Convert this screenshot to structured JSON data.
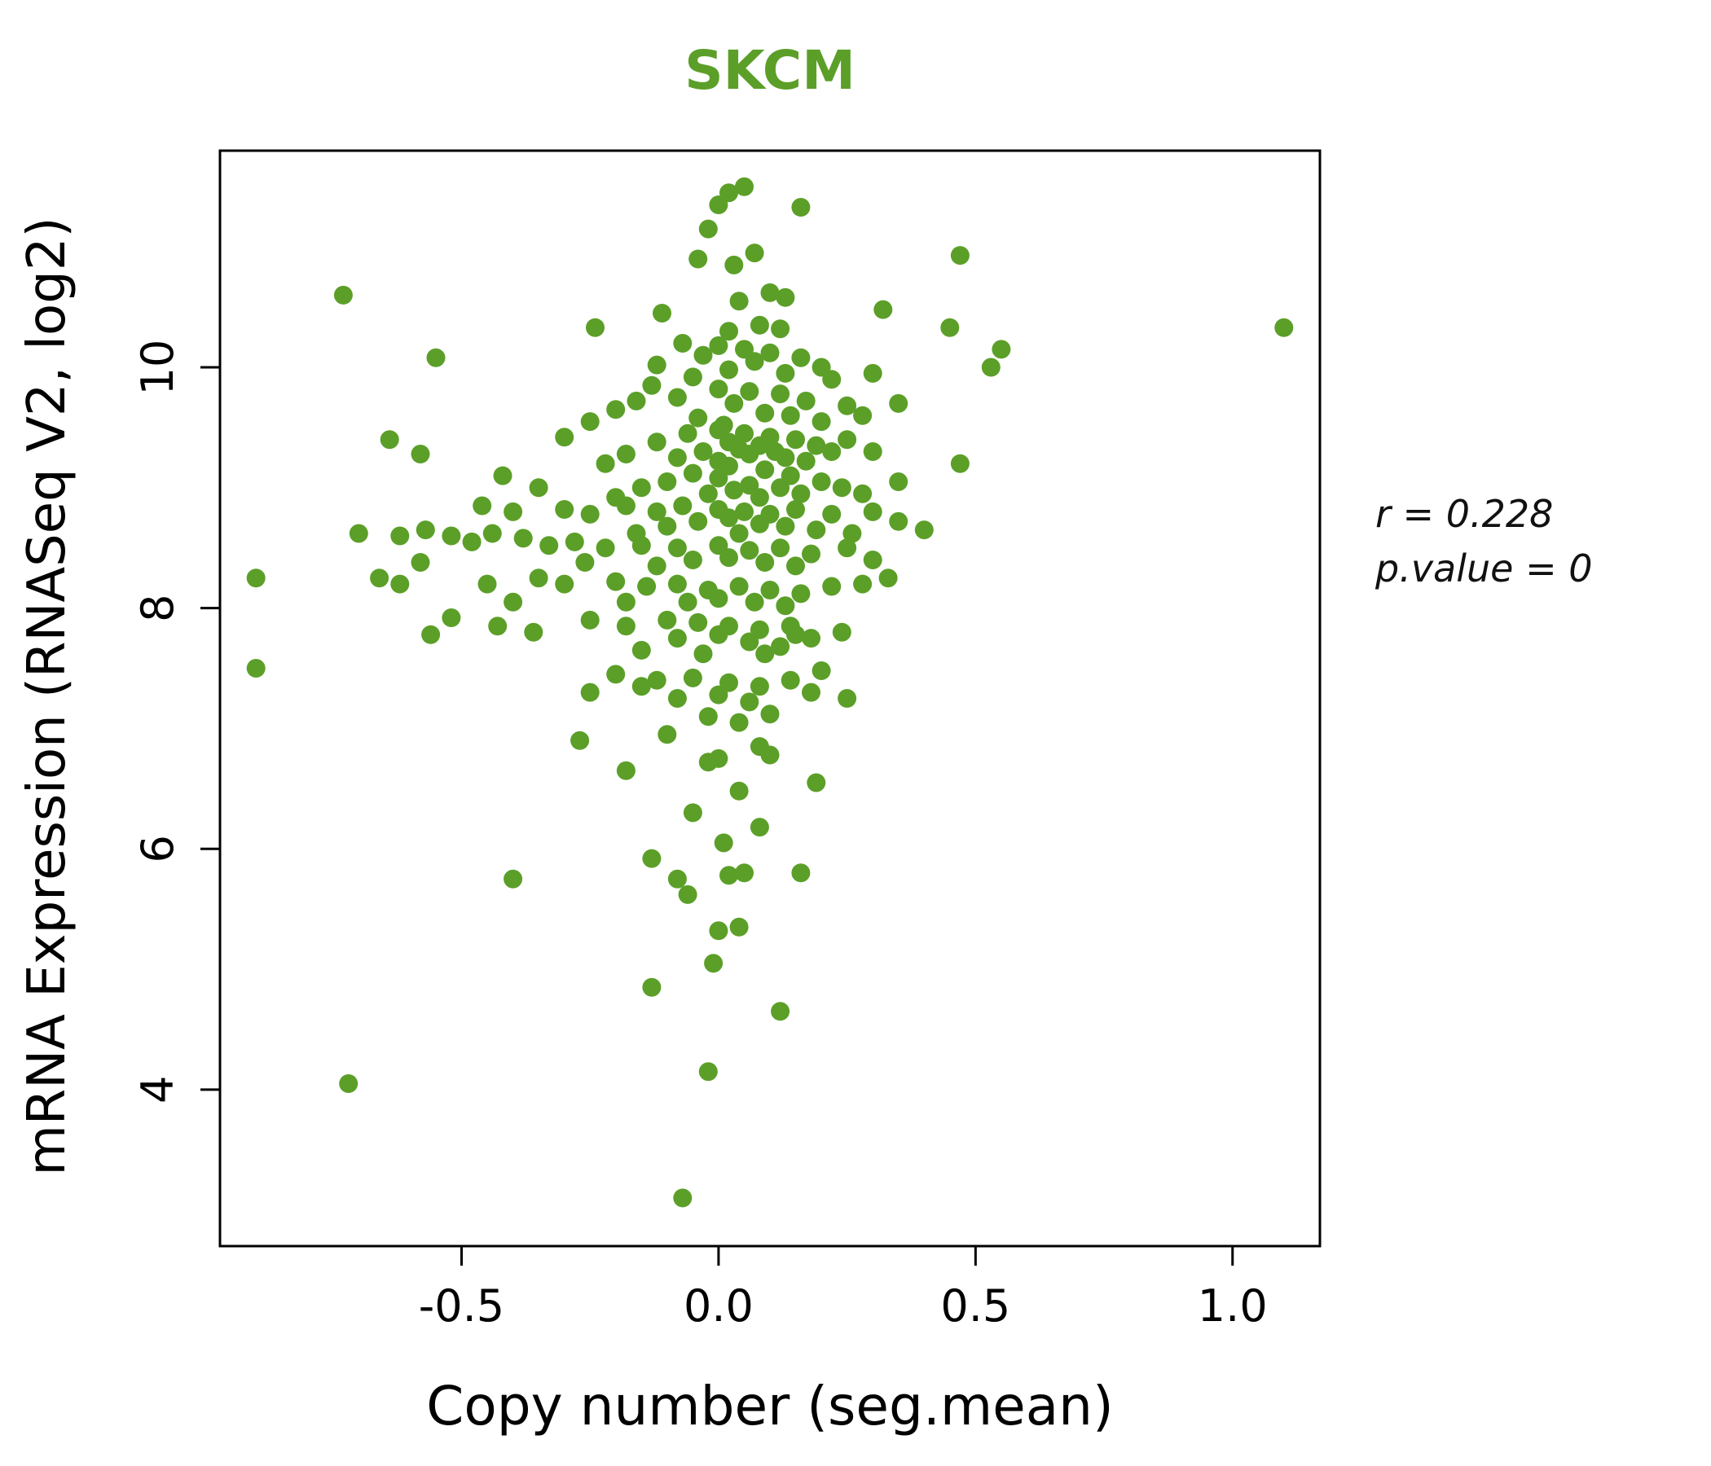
{
  "colors": {
    "green": "#5b9f28",
    "axis": "#000000"
  },
  "chart_data": {
    "type": "scatter",
    "title": "SKCM",
    "xlabel": "Copy number (seg.mean)",
    "ylabel": "mRNA Expression (RNASeq V2, log2)",
    "annotations": [
      "r = 0.228",
      "p.value = 0"
    ],
    "xlim": [
      -0.97,
      1.17
    ],
    "ylim": [
      2.7,
      11.8
    ],
    "xticks": [
      -0.5,
      0.0,
      0.5,
      1.0
    ],
    "xtick_labels": [
      "-0.5",
      "0.0",
      "0.5",
      "1.0"
    ],
    "yticks": [
      4,
      6,
      8,
      10
    ],
    "ytick_labels": [
      "4",
      "6",
      "8",
      "10"
    ],
    "grid": false,
    "legend": false,
    "point_color": "#5b9f28",
    "points": [
      [
        0.02,
        11.45
      ],
      [
        0.05,
        11.5
      ],
      [
        0.0,
        11.35
      ],
      [
        0.16,
        11.33
      ],
      [
        -0.02,
        11.15
      ],
      [
        0.07,
        10.95
      ],
      [
        0.47,
        10.93
      ],
      [
        -0.04,
        10.9
      ],
      [
        0.03,
        10.85
      ],
      [
        -0.73,
        10.6
      ],
      [
        0.1,
        10.62
      ],
      [
        0.13,
        10.58
      ],
      [
        0.04,
        10.55
      ],
      [
        0.32,
        10.48
      ],
      [
        -0.24,
        10.33
      ],
      [
        0.45,
        10.33
      ],
      [
        1.1,
        10.33
      ],
      [
        -0.11,
        10.45
      ],
      [
        0.08,
        10.35
      ],
      [
        0.12,
        10.32
      ],
      [
        0.02,
        10.3
      ],
      [
        -0.55,
        10.08
      ],
      [
        0.55,
        10.15
      ],
      [
        0.53,
        10.0
      ],
      [
        -0.07,
        10.2
      ],
      [
        0.0,
        10.18
      ],
      [
        0.05,
        10.15
      ],
      [
        0.1,
        10.12
      ],
      [
        -0.03,
        10.1
      ],
      [
        0.16,
        10.08
      ],
      [
        0.07,
        10.05
      ],
      [
        -0.12,
        10.02
      ],
      [
        0.2,
        10.0
      ],
      [
        0.02,
        9.98
      ],
      [
        0.13,
        9.95
      ],
      [
        -0.05,
        9.92
      ],
      [
        0.22,
        9.9
      ],
      [
        0.3,
        9.95
      ],
      [
        -0.13,
        9.85
      ],
      [
        0.0,
        9.82
      ],
      [
        0.06,
        9.8
      ],
      [
        0.12,
        9.78
      ],
      [
        -0.08,
        9.75
      ],
      [
        0.17,
        9.72
      ],
      [
        0.03,
        9.7
      ],
      [
        0.25,
        9.68
      ],
      [
        -0.2,
        9.65
      ],
      [
        0.09,
        9.62
      ],
      [
        0.14,
        9.6
      ],
      [
        -0.04,
        9.58
      ],
      [
        0.2,
        9.55
      ],
      [
        0.01,
        9.52
      ],
      [
        0.28,
        9.6
      ],
      [
        -0.25,
        9.55
      ],
      [
        0.35,
        9.7
      ],
      [
        -0.16,
        9.72
      ],
      [
        0.0,
        9.48
      ],
      [
        0.05,
        9.45
      ],
      [
        0.1,
        9.42
      ],
      [
        -0.06,
        9.45
      ],
      [
        0.15,
        9.4
      ],
      [
        0.02,
        9.38
      ],
      [
        0.08,
        9.35
      ],
      [
        -0.12,
        9.38
      ],
      [
        0.19,
        9.35
      ],
      [
        0.04,
        9.32
      ],
      [
        0.11,
        9.3
      ],
      [
        -0.03,
        9.3
      ],
      [
        0.22,
        9.3
      ],
      [
        0.06,
        9.28
      ],
      [
        -0.08,
        9.25
      ],
      [
        0.13,
        9.25
      ],
      [
        0.0,
        9.22
      ],
      [
        0.17,
        9.22
      ],
      [
        -0.18,
        9.28
      ],
      [
        0.25,
        9.4
      ],
      [
        -0.3,
        9.42
      ],
      [
        0.3,
        9.3
      ],
      [
        -0.22,
        9.2
      ],
      [
        -0.64,
        9.4
      ],
      [
        -0.58,
        9.28
      ],
      [
        0.02,
        9.18
      ],
      [
        0.09,
        9.15
      ],
      [
        -0.05,
        9.12
      ],
      [
        0.14,
        9.1
      ],
      [
        0.0,
        9.08
      ],
      [
        0.2,
        9.05
      ],
      [
        -0.1,
        9.05
      ],
      [
        0.06,
        9.02
      ],
      [
        0.12,
        9.0
      ],
      [
        -0.15,
        9.0
      ],
      [
        0.24,
        9.0
      ],
      [
        0.03,
        8.98
      ],
      [
        -0.02,
        8.95
      ],
      [
        0.16,
        8.95
      ],
      [
        0.08,
        8.92
      ],
      [
        -0.2,
        8.92
      ],
      [
        0.28,
        8.95
      ],
      [
        0.47,
        9.2
      ],
      [
        -0.35,
        9.0
      ],
      [
        -0.42,
        9.1
      ],
      [
        0.35,
        9.05
      ],
      [
        -0.46,
        8.85
      ],
      [
        -0.4,
        8.8
      ],
      [
        -0.3,
        8.82
      ],
      [
        -0.25,
        8.78
      ],
      [
        -0.18,
        8.85
      ],
      [
        -0.12,
        8.8
      ],
      [
        -0.07,
        8.85
      ],
      [
        0.0,
        8.82
      ],
      [
        0.05,
        8.8
      ],
      [
        0.1,
        8.78
      ],
      [
        0.15,
        8.82
      ],
      [
        0.22,
        8.78
      ],
      [
        0.3,
        8.8
      ],
      [
        0.02,
        8.75
      ],
      [
        -0.04,
        8.72
      ],
      [
        0.08,
        8.7
      ],
      [
        0.13,
        8.68
      ],
      [
        -0.1,
        8.68
      ],
      [
        0.19,
        8.65
      ],
      [
        0.04,
        8.62
      ],
      [
        -0.16,
        8.62
      ],
      [
        0.26,
        8.62
      ],
      [
        0.35,
        8.72
      ],
      [
        0.4,
        8.65
      ],
      [
        -0.7,
        8.62
      ],
      [
        -0.62,
        8.6
      ],
      [
        -0.57,
        8.65
      ],
      [
        -0.52,
        8.6
      ],
      [
        -0.48,
        8.55
      ],
      [
        -0.44,
        8.62
      ],
      [
        -0.38,
        8.58
      ],
      [
        -0.33,
        8.52
      ],
      [
        -0.28,
        8.55
      ],
      [
        -0.22,
        8.5
      ],
      [
        -0.15,
        8.52
      ],
      [
        -0.08,
        8.5
      ],
      [
        0.0,
        8.52
      ],
      [
        0.06,
        8.48
      ],
      [
        0.12,
        8.5
      ],
      [
        0.18,
        8.45
      ],
      [
        0.25,
        8.5
      ],
      [
        0.02,
        8.42
      ],
      [
        -0.05,
        8.4
      ],
      [
        0.09,
        8.38
      ],
      [
        -0.12,
        8.35
      ],
      [
        0.15,
        8.35
      ],
      [
        0.3,
        8.4
      ],
      [
        -0.26,
        8.38
      ],
      [
        -0.58,
        8.38
      ],
      [
        -0.9,
        8.25
      ],
      [
        -0.66,
        8.25
      ],
      [
        -0.62,
        8.2
      ],
      [
        -0.45,
        8.2
      ],
      [
        -0.35,
        8.25
      ],
      [
        -0.3,
        8.2
      ],
      [
        -0.2,
        8.22
      ],
      [
        -0.14,
        8.18
      ],
      [
        -0.08,
        8.2
      ],
      [
        -0.02,
        8.15
      ],
      [
        0.04,
        8.18
      ],
      [
        0.1,
        8.15
      ],
      [
        0.16,
        8.12
      ],
      [
        0.22,
        8.18
      ],
      [
        0.0,
        8.08
      ],
      [
        -0.06,
        8.05
      ],
      [
        0.07,
        8.05
      ],
      [
        0.13,
        8.02
      ],
      [
        -0.18,
        8.05
      ],
      [
        0.28,
        8.2
      ],
      [
        0.33,
        8.25
      ],
      [
        -0.4,
        8.05
      ],
      [
        -0.52,
        7.92
      ],
      [
        -0.43,
        7.85
      ],
      [
        -0.56,
        7.78
      ],
      [
        -0.36,
        7.8
      ],
      [
        -0.25,
        7.9
      ],
      [
        -0.18,
        7.85
      ],
      [
        -0.1,
        7.9
      ],
      [
        -0.04,
        7.88
      ],
      [
        0.02,
        7.85
      ],
      [
        0.08,
        7.82
      ],
      [
        0.14,
        7.85
      ],
      [
        0.0,
        7.78
      ],
      [
        -0.08,
        7.75
      ],
      [
        0.06,
        7.72
      ],
      [
        0.12,
        7.68
      ],
      [
        -0.15,
        7.65
      ],
      [
        0.18,
        7.75
      ],
      [
        0.24,
        7.8
      ],
      [
        -0.03,
        7.62
      ],
      [
        0.09,
        7.62
      ],
      [
        0.15,
        7.78
      ],
      [
        -0.9,
        7.5
      ],
      [
        -0.2,
        7.45
      ],
      [
        -0.12,
        7.4
      ],
      [
        -0.05,
        7.42
      ],
      [
        0.02,
        7.38
      ],
      [
        0.08,
        7.35
      ],
      [
        0.14,
        7.4
      ],
      [
        0.0,
        7.28
      ],
      [
        -0.08,
        7.25
      ],
      [
        0.06,
        7.22
      ],
      [
        0.18,
        7.3
      ],
      [
        -0.15,
        7.35
      ],
      [
        0.1,
        7.12
      ],
      [
        -0.02,
        7.1
      ],
      [
        0.04,
        7.05
      ],
      [
        0.2,
        7.48
      ],
      [
        0.25,
        7.25
      ],
      [
        -0.25,
        7.3
      ],
      [
        -0.27,
        6.9
      ],
      [
        0.08,
        6.85
      ],
      [
        0.1,
        6.78
      ],
      [
        0.0,
        6.75
      ],
      [
        -0.02,
        6.72
      ],
      [
        0.19,
        6.55
      ],
      [
        -0.18,
        6.65
      ],
      [
        0.04,
        6.48
      ],
      [
        -0.1,
        6.95
      ],
      [
        -0.05,
        6.3
      ],
      [
        0.08,
        6.18
      ],
      [
        -0.13,
        5.92
      ],
      [
        0.01,
        6.05
      ],
      [
        -0.08,
        5.75
      ],
      [
        -0.4,
        5.75
      ],
      [
        0.02,
        5.78
      ],
      [
        0.05,
        5.8
      ],
      [
        0.16,
        5.8
      ],
      [
        -0.06,
        5.62
      ],
      [
        0.0,
        5.32
      ],
      [
        0.04,
        5.35
      ],
      [
        -0.01,
        5.05
      ],
      [
        -0.13,
        4.85
      ],
      [
        0.12,
        4.65
      ],
      [
        -0.02,
        4.15
      ],
      [
        -0.72,
        4.05
      ],
      [
        -0.07,
        3.1
      ]
    ]
  }
}
